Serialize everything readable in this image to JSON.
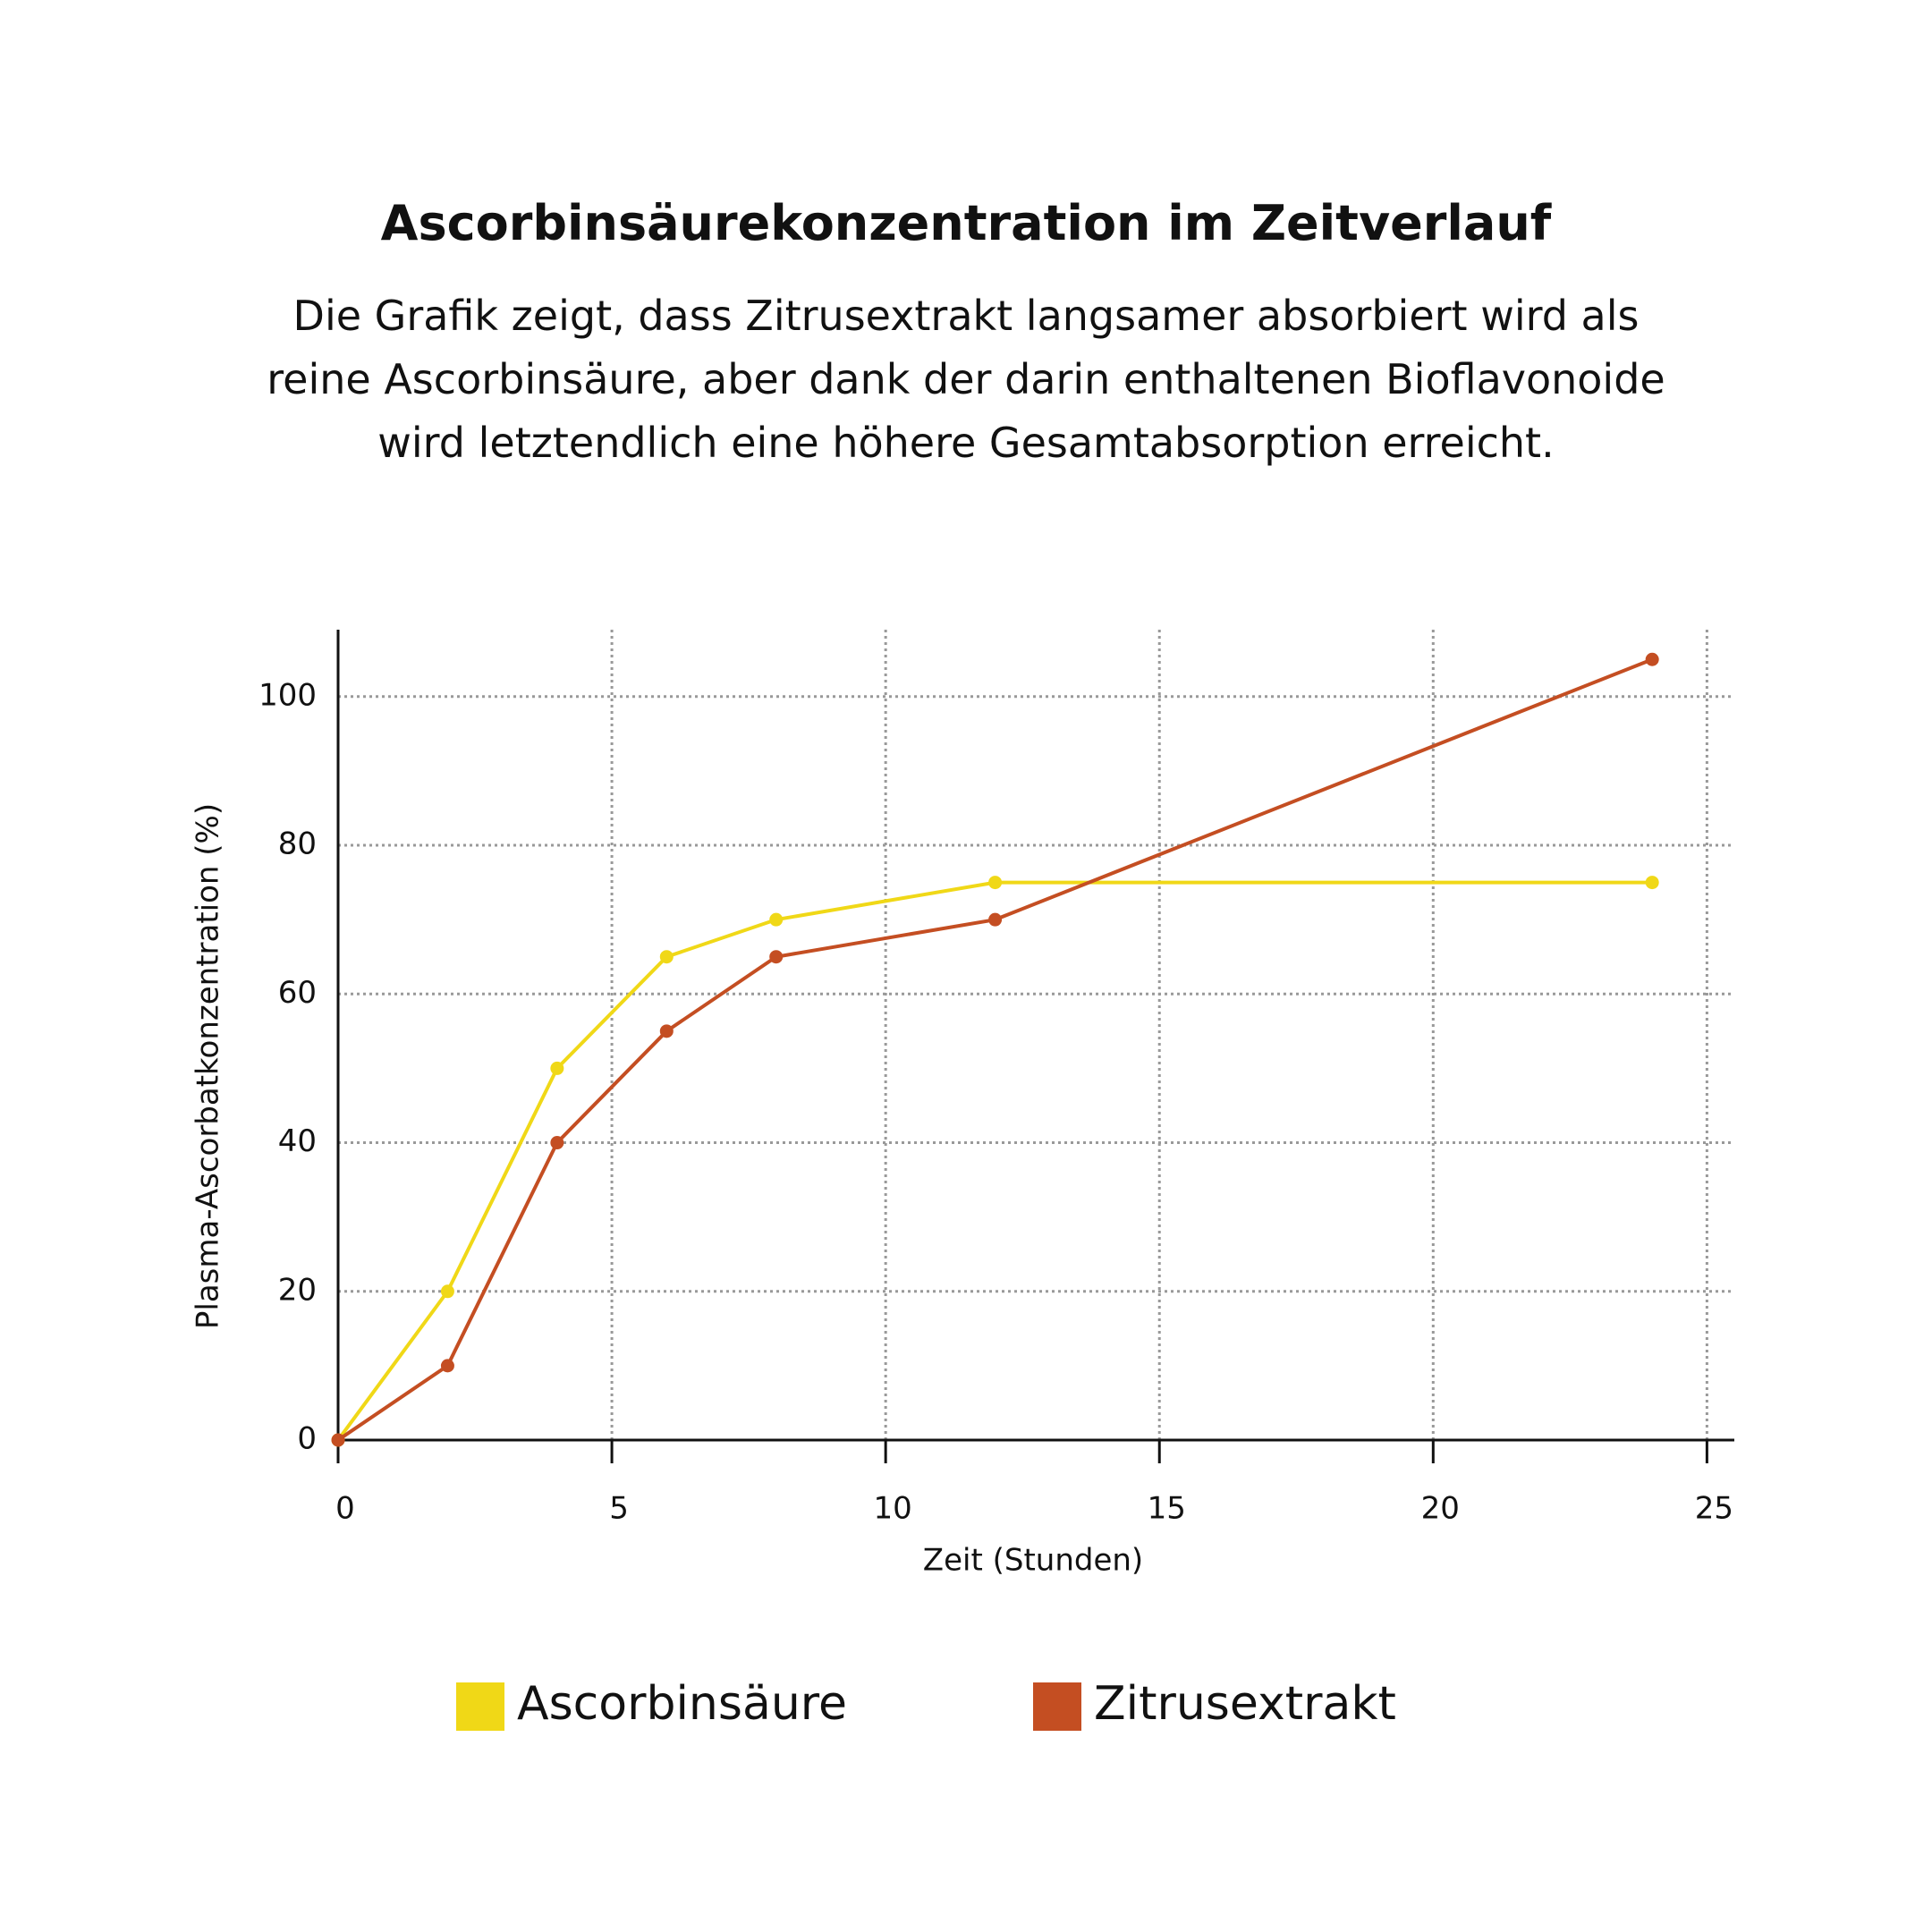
{
  "chart_data": {
    "type": "line",
    "title": "Ascorbinsäurekonzentration im Zeitverlauf",
    "subtitle": "Die Grafik zeigt, dass Zitrusextrakt langsamer absorbiert wird als reine Ascorbinsäure, aber dank der darin enthaltenen Bioflavonoide wird letztendlich eine höhere Gesamtabsorption erreicht.",
    "x_label": "Zeit (Stunden)",
    "y_label": "Plasma-Ascorbatkonzentration (%)",
    "x": [
      0,
      2,
      4,
      6,
      8,
      12,
      24
    ],
    "series": [
      {
        "name": "Ascorbinsäure",
        "color": "#f0d817",
        "values": [
          0,
          20,
          50,
          65,
          70,
          75,
          75
        ]
      },
      {
        "name": "Zitrusextrakt",
        "color": "#c44e22",
        "values": [
          0,
          10,
          40,
          55,
          65,
          70,
          105
        ]
      }
    ],
    "xlim": [
      0,
      25.5
    ],
    "ylim": [
      0,
      109
    ],
    "xticks": [
      0,
      5,
      10,
      15,
      20,
      25
    ],
    "yticks": [
      0,
      20,
      40,
      60,
      80,
      100
    ],
    "grid": true,
    "legend": "bottom"
  }
}
